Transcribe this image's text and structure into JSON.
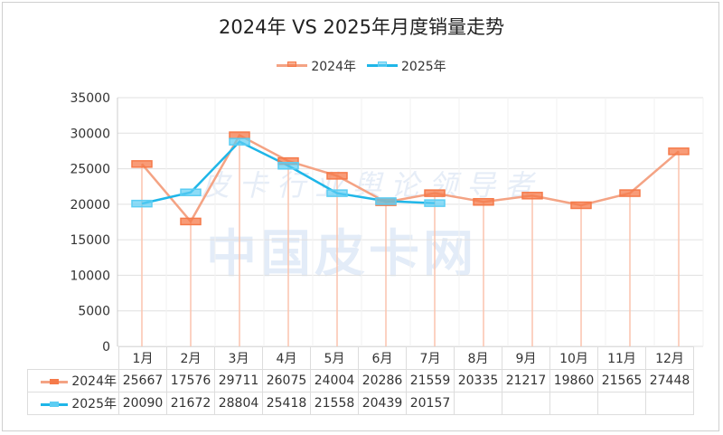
{
  "watermark": {
    "main": "中国皮卡网",
    "script": "皮卡行业舆论领导者"
  },
  "chart_data": {
    "type": "line",
    "title": "2024年 VS 2025年月度销量走势",
    "categories": [
      "1月",
      "2月",
      "3月",
      "4月",
      "5月",
      "6月",
      "7月",
      "8月",
      "9月",
      "10月",
      "11月",
      "12月"
    ],
    "series": [
      {
        "name": "2024年",
        "color": "#f4a384",
        "marker": "#f57a4a",
        "values": [
          25667,
          17576,
          29711,
          26075,
          24004,
          20286,
          21559,
          20335,
          21217,
          19860,
          21565,
          27448
        ]
      },
      {
        "name": "2025年",
        "color": "#1fb6e8",
        "marker": "#5ccdf3",
        "values": [
          20090,
          21672,
          28804,
          25418,
          21558,
          20439,
          20157,
          null,
          null,
          null,
          null,
          null
        ]
      }
    ],
    "ylim": [
      0,
      35000
    ],
    "yticks": [
      0,
      5000,
      10000,
      15000,
      20000,
      25000,
      30000,
      35000
    ],
    "grid": true,
    "legend": "top-center",
    "data_table": true
  }
}
